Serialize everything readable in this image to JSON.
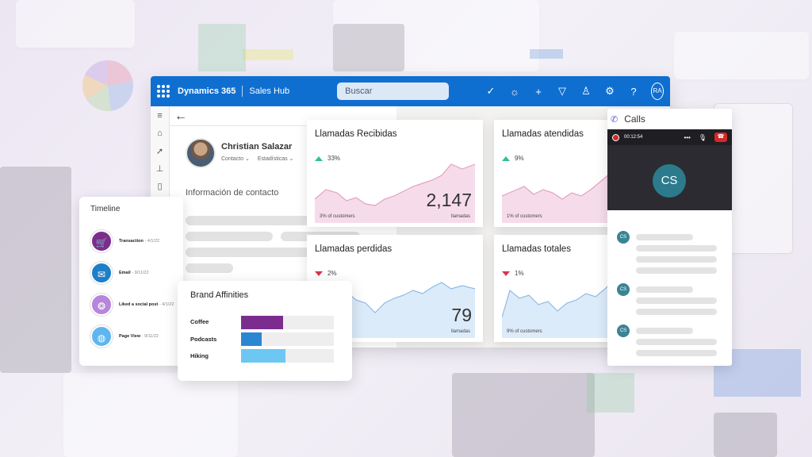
{
  "topbar": {
    "brand": "Dynamics 365",
    "app_name": "Sales Hub",
    "search_placeholder": "Buscar",
    "avatar_initials": "RA",
    "icons": [
      "check-circle-icon",
      "lightbulb-icon",
      "plus-icon",
      "filter-icon",
      "person-icon",
      "gear-icon",
      "help-icon"
    ]
  },
  "contact": {
    "name": "Christian Salazar",
    "tabs": [
      "Contacto",
      "Estadísticas"
    ],
    "section_title": "Información de contacto"
  },
  "cards": [
    {
      "title": "Llamadas Recibidas",
      "trend": "33%",
      "direction": "up",
      "footer": "3% of customers",
      "value": "2,147",
      "unit": "llamadas",
      "color": "#f4dcea",
      "stroke": "#e7a6c9"
    },
    {
      "title": "Llamadas atendidas",
      "trend": "9%",
      "direction": "up",
      "footer": "1% of customers",
      "value": "",
      "unit": "",
      "color": "#f4dcea",
      "stroke": "#e7a6c9"
    },
    {
      "title": "Llamadas perdidas",
      "trend": "2%",
      "direction": "down",
      "footer": "rs",
      "value": "79",
      "unit": "llamadas",
      "color": "#dcebf9",
      "stroke": "#8fbde8"
    },
    {
      "title": "Llamadas totales",
      "trend": "1%",
      "direction": "down",
      "footer": "9% of customers",
      "value": "",
      "unit": "",
      "color": "#dcebf9",
      "stroke": "#8fbde8"
    }
  ],
  "calls": {
    "title": "Calls",
    "timer": "00:12:54",
    "caller_initials": "CS",
    "message_initials": "CS"
  },
  "timeline": {
    "title": "Timeline",
    "items": [
      {
        "label": "Transaction",
        "date": "- 4/1/22",
        "color": "#7b2d8e",
        "icon": "cart-icon",
        "glyph": "🛒"
      },
      {
        "label": "Email",
        "date": "- 9/11/22",
        "color": "#1e7fc9",
        "icon": "envelope-icon",
        "glyph": "✉"
      },
      {
        "label": "Liked a social post",
        "date": "- 4/1/22",
        "color": "#b785dc",
        "icon": "share-icon",
        "glyph": "❂"
      },
      {
        "label": "Page View",
        "date": "- 9/11/22",
        "color": "#5fb6ee",
        "icon": "globe-icon",
        "glyph": "◍"
      }
    ]
  },
  "brand_affinities": {
    "title": "Brand Affinities",
    "rows": [
      {
        "label": "Coffee",
        "value": 0.45,
        "color": "#7b2d8e"
      },
      {
        "label": "Podcasts",
        "value": 0.22,
        "color": "#2b87d1"
      },
      {
        "label": "Hiking",
        "value": 0.48,
        "color": "#6cc7f2"
      }
    ]
  }
}
